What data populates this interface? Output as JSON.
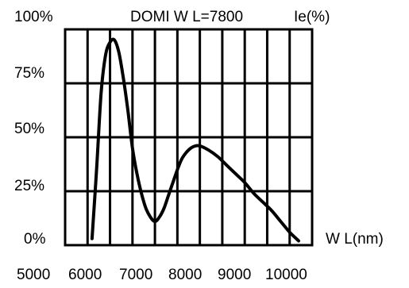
{
  "chart_data": {
    "type": "line",
    "title": "DOMI W L=7800",
    "ylabel": "Ie(%)",
    "xlabel": "W L(nm)",
    "x_ticks": [
      "5000",
      "6000",
      "7000",
      "8000",
      "9000",
      "10000"
    ],
    "y_ticks": [
      "100%",
      "75%",
      "50%",
      "25%",
      "0%"
    ],
    "xlim": [
      5000,
      10500
    ],
    "ylim": [
      0,
      100
    ],
    "grid": true,
    "series": [
      {
        "x": [
          5600,
          5700,
          5800,
          5900,
          6000,
          6100,
          6200,
          6300,
          6400,
          6500,
          6600,
          6700,
          6800,
          6900,
          7000,
          7100,
          7200,
          7300,
          7400,
          7500,
          7600,
          7700,
          7800,
          7900,
          8000,
          8200,
          8400,
          8600,
          8800,
          9000,
          9200,
          9400,
          9600,
          9800,
          10000,
          10200
        ],
        "values": [
          3,
          35,
          70,
          88,
          94,
          95,
          89,
          77,
          62,
          45,
          33,
          24,
          17,
          13,
          11,
          13,
          17,
          23,
          29,
          35,
          40,
          43,
          45,
          46,
          46,
          44,
          41,
          37,
          33,
          29,
          24,
          20,
          16,
          11,
          6,
          2
        ]
      }
    ]
  }
}
